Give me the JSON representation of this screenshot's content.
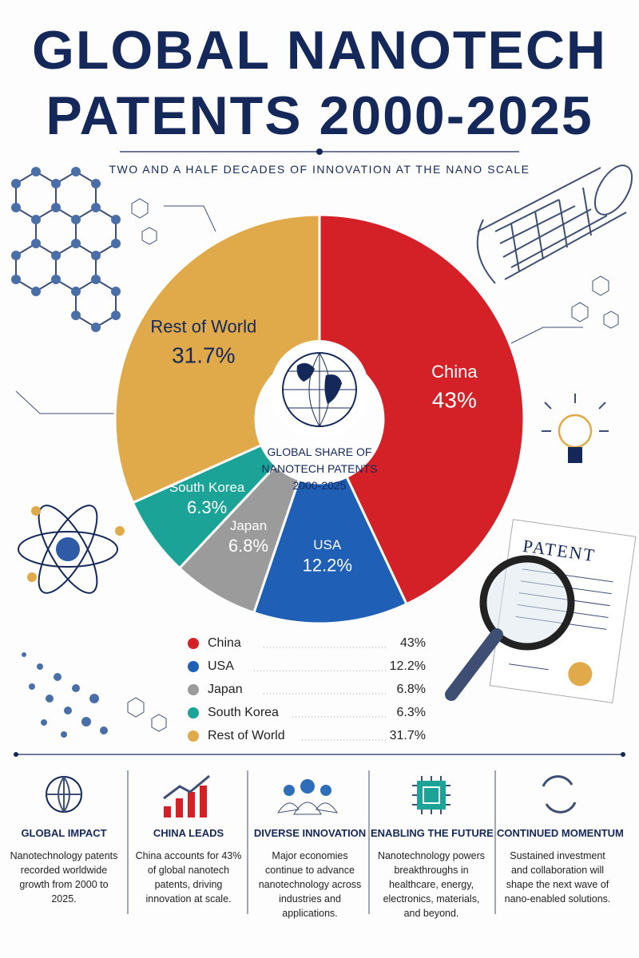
{
  "chart_data": {
    "type": "donut",
    "title": "GLOBAL NANOTECH PATENTS 2000-2025",
    "subtitle": "TWO AND A HALF DECADES OF INNOVATION AT THE NANO SCALE",
    "center_label": "GLOBAL SHARE OF NANOTECH PATENTS 2000-2025",
    "categories": [
      "China",
      "USA",
      "Japan",
      "South Korea",
      "Rest of World"
    ],
    "values": [
      43,
      12.2,
      6.8,
      6.3,
      31.7
    ],
    "value_labels": [
      "43%",
      "12.2%",
      "6.8%",
      "6.3%",
      "31.7%"
    ],
    "colors": [
      "#d42027",
      "#1f5fb5",
      "#9b9b9b",
      "#1aa396",
      "#e0a94a"
    ]
  },
  "illustration_text": "PATENT",
  "features": [
    {
      "title": "GLOBAL IMPACT",
      "text": "Nanotechnology patents recorded worldwide growth from 2000 to 2025."
    },
    {
      "title": "CHINA LEADS",
      "text": "China accounts for 43% of global nanotech patents, driving innovation at scale."
    },
    {
      "title": "DIVERSE INNOVATION",
      "text": "Major economies continue to advance nanotechnology across industries and applications."
    },
    {
      "title": "ENABLING THE FUTURE",
      "text": "Nanotechnology powers breakthroughs in healthcare, energy, electronics, materials, and beyond."
    },
    {
      "title": "CONTINUED MOMENTUM",
      "text": "Sustained investment and collaboration will shape the next wave of nano-enabled solutions."
    }
  ]
}
